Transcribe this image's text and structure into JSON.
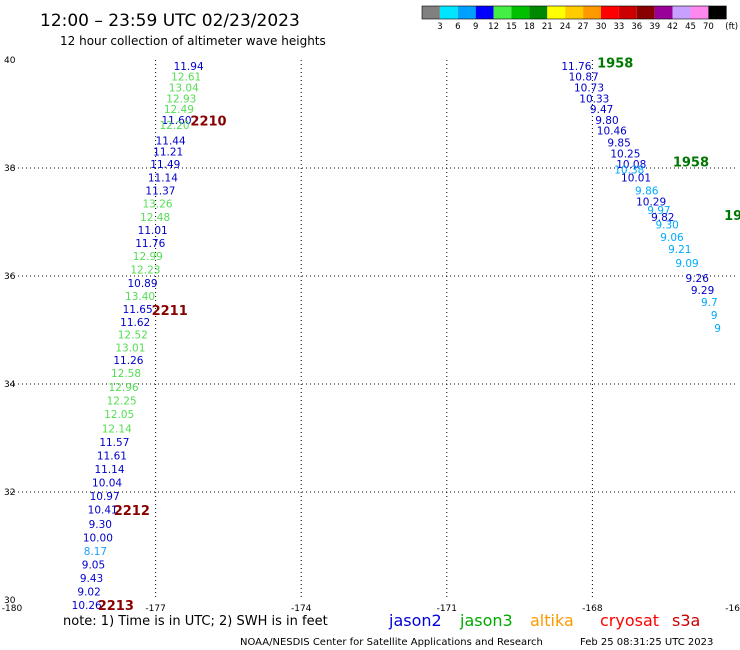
{
  "chart_data": {
    "type": "scatter",
    "title": "12:00 – 23:59 UTC 02/23/2023",
    "subtitle": "12 hour collection of altimeter wave heights",
    "x_ticks": [
      "-180",
      "-177",
      "-174",
      "-171",
      "-168",
      "-16"
    ],
    "y_ticks": [
      "40",
      "38",
      "36",
      "34",
      "32",
      "30"
    ],
    "xlim": [
      -180,
      -165
    ],
    "ylim": [
      30,
      40
    ],
    "grid": "dotted",
    "colorbar": {
      "labels": [
        "3",
        "6",
        "9",
        "12",
        "15",
        "18",
        "21",
        "24",
        "27",
        "30",
        "33",
        "36",
        "39",
        "42",
        "45",
        "70"
      ],
      "unit": "(ft)",
      "colors": [
        "#808080",
        "#00e5ff",
        "#00a0ff",
        "#0000ff",
        "#44ee44",
        "#00c000",
        "#008800",
        "#ffff00",
        "#ffcc00",
        "#ff9900",
        "#ff0000",
        "#cc0000",
        "#880000",
        "#990099",
        "#c8a0ff",
        "#ff88ee",
        "#000000"
      ]
    },
    "track_a": {
      "points": [
        {
          "lat": 39.89,
          "lon": -176.32,
          "v": "11.94",
          "c": "#0000cc"
        },
        {
          "lat": 39.69,
          "lon": -176.37,
          "v": "12.61",
          "c": "#55dd55"
        },
        {
          "lat": 39.49,
          "lon": -176.42,
          "v": "13.04",
          "c": "#55dd55"
        },
        {
          "lat": 39.29,
          "lon": -176.47,
          "v": "12.93",
          "c": "#55dd55"
        },
        {
          "lat": 39.09,
          "lon": -176.52,
          "v": "12.49",
          "c": "#55dd55"
        },
        {
          "lat": 38.89,
          "lon": -176.57,
          "v": "11.60",
          "c": "#0000cc"
        },
        {
          "lat": 38.8,
          "lon": -176.61,
          "v": "12.20",
          "c": "#55dd55"
        },
        {
          "lat": 38.51,
          "lon": -176.69,
          "v": "11.44",
          "c": "#0000cc"
        },
        {
          "lat": 38.31,
          "lon": -176.74,
          "v": "11.21",
          "c": "#0000cc"
        },
        {
          "lat": 38.07,
          "lon": -176.8,
          "v": "11.49",
          "c": "#0000cc"
        },
        {
          "lat": 37.82,
          "lon": -176.85,
          "v": "11.14",
          "c": "#0000cc"
        },
        {
          "lat": 37.58,
          "lon": -176.9,
          "v": "11.37",
          "c": "#0000cc"
        },
        {
          "lat": 37.34,
          "lon": -176.96,
          "v": "13.26",
          "c": "#55dd55"
        },
        {
          "lat": 37.09,
          "lon": -177.01,
          "v": "12.48",
          "c": "#55dd55"
        },
        {
          "lat": 36.85,
          "lon": -177.06,
          "v": "11.01",
          "c": "#0000cc"
        },
        {
          "lat": 36.61,
          "lon": -177.11,
          "v": "11.76",
          "c": "#0000cc"
        },
        {
          "lat": 36.37,
          "lon": -177.16,
          "v": "12.99",
          "c": "#55dd55"
        },
        {
          "lat": 36.12,
          "lon": -177.21,
          "v": "12.23",
          "c": "#55dd55"
        },
        {
          "lat": 35.87,
          "lon": -177.27,
          "v": "10.89",
          "c": "#0000cc"
        },
        {
          "lat": 35.63,
          "lon": -177.32,
          "v": "13.40",
          "c": "#55dd55"
        },
        {
          "lat": 35.39,
          "lon": -177.37,
          "v": "11.65",
          "c": "#0000cc"
        },
        {
          "lat": 35.15,
          "lon": -177.42,
          "v": "11.62",
          "c": "#0000cc"
        },
        {
          "lat": 34.92,
          "lon": -177.47,
          "v": "12.52",
          "c": "#55dd55"
        },
        {
          "lat": 34.68,
          "lon": -177.52,
          "v": "13.01",
          "c": "#55dd55"
        },
        {
          "lat": 34.44,
          "lon": -177.56,
          "v": "11.26",
          "c": "#0000cc"
        },
        {
          "lat": 34.2,
          "lon": -177.61,
          "v": "12.58",
          "c": "#55dd55"
        },
        {
          "lat": 33.94,
          "lon": -177.66,
          "v": "12.96",
          "c": "#55dd55"
        },
        {
          "lat": 33.69,
          "lon": -177.7,
          "v": "12.25",
          "c": "#55dd55"
        },
        {
          "lat": 33.44,
          "lon": -177.75,
          "v": "12.05",
          "c": "#55dd55"
        },
        {
          "lat": 33.18,
          "lon": -177.8,
          "v": "12.14",
          "c": "#55dd55"
        },
        {
          "lat": 32.93,
          "lon": -177.85,
          "v": "11.57",
          "c": "#0000cc"
        },
        {
          "lat": 32.68,
          "lon": -177.9,
          "v": "11.61",
          "c": "#0000cc"
        },
        {
          "lat": 32.43,
          "lon": -177.95,
          "v": "11.14",
          "c": "#0000cc"
        },
        {
          "lat": 32.18,
          "lon": -178.0,
          "v": "10.04",
          "c": "#0000cc"
        },
        {
          "lat": 31.93,
          "lon": -178.05,
          "v": "10.97",
          "c": "#0000cc"
        },
        {
          "lat": 31.68,
          "lon": -178.09,
          "v": "10.41",
          "c": "#0000cc"
        },
        {
          "lat": 31.41,
          "lon": -178.14,
          "v": "9.30",
          "c": "#0000cc"
        },
        {
          "lat": 31.16,
          "lon": -178.19,
          "v": "10.00",
          "c": "#0000cc"
        },
        {
          "lat": 30.91,
          "lon": -178.24,
          "v": "8.17",
          "c": "#1ea0ff"
        },
        {
          "lat": 30.66,
          "lon": -178.28,
          "v": "9.05",
          "c": "#0000cc"
        },
        {
          "lat": 30.41,
          "lon": -178.32,
          "v": "9.43",
          "c": "#0000cc"
        },
        {
          "lat": 30.16,
          "lon": -178.37,
          "v": "9.02",
          "c": "#0000cc"
        },
        {
          "lat": 29.91,
          "lon": -178.42,
          "v": "10.26",
          "c": "#0000cc"
        }
      ],
      "times": [
        {
          "lat": 38.88,
          "lon": -175.91,
          "t": "2210",
          "c": "#880000"
        },
        {
          "lat": 35.37,
          "lon": -176.71,
          "t": "2211",
          "c": "#880000"
        },
        {
          "lat": 31.67,
          "lon": -177.49,
          "t": "2212",
          "c": "#880000"
        },
        {
          "lat": 29.91,
          "lon": -177.82,
          "t": "2213",
          "c": "#880000"
        }
      ]
    },
    "track_b": {
      "points": [
        {
          "lat": 39.89,
          "lon": -168.33,
          "v": "11.76",
          "c": "#0000cc"
        },
        {
          "lat": 39.69,
          "lon": -168.18,
          "v": "10.87",
          "c": "#0000cc"
        },
        {
          "lat": 39.49,
          "lon": -168.07,
          "v": "10.73",
          "c": "#0000cc"
        },
        {
          "lat": 39.29,
          "lon": -167.96,
          "v": "10.33",
          "c": "#0000cc"
        },
        {
          "lat": 39.09,
          "lon": -167.81,
          "v": "9.47",
          "c": "#0000cc"
        },
        {
          "lat": 38.89,
          "lon": -167.7,
          "v": "9.80",
          "c": "#0000cc"
        },
        {
          "lat": 38.69,
          "lon": -167.6,
          "v": "10.46",
          "c": "#0000cc"
        },
        {
          "lat": 38.47,
          "lon": -167.45,
          "v": "9.85",
          "c": "#0000cc"
        },
        {
          "lat": 38.27,
          "lon": -167.32,
          "v": "10.25",
          "c": "#0000cc"
        },
        {
          "lat": 38.07,
          "lon": -167.2,
          "v": "10.08",
          "c": "#0000cc"
        },
        {
          "lat": 37.97,
          "lon": -167.24,
          "v": "10.38",
          "c": "#00aaff"
        },
        {
          "lat": 37.82,
          "lon": -167.1,
          "v": "10.01",
          "c": "#0000cc"
        },
        {
          "lat": 37.58,
          "lon": -166.88,
          "v": "9.86",
          "c": "#00aaff"
        },
        {
          "lat": 37.38,
          "lon": -166.79,
          "v": "10.29",
          "c": "#0000cc"
        },
        {
          "lat": 37.22,
          "lon": -166.63,
          "v": "9.97",
          "c": "#00aaff"
        },
        {
          "lat": 37.09,
          "lon": -166.55,
          "v": "9.82",
          "c": "#0000cc"
        },
        {
          "lat": 36.95,
          "lon": -166.46,
          "v": "9.30",
          "c": "#00aaff"
        },
        {
          "lat": 36.72,
          "lon": -166.36,
          "v": "9.06",
          "c": "#00aaff"
        },
        {
          "lat": 36.5,
          "lon": -166.2,
          "v": "9.21",
          "c": "#00aaff"
        },
        {
          "lat": 36.24,
          "lon": -166.05,
          "v": "9.09",
          "c": "#00aaff"
        },
        {
          "lat": 35.96,
          "lon": -165.84,
          "v": "9.26",
          "c": "#0000cc"
        },
        {
          "lat": 35.74,
          "lon": -165.73,
          "v": "9.29",
          "c": "#0000cc"
        },
        {
          "lat": 35.52,
          "lon": -165.59,
          "v": "9.7",
          "c": "#00aaff"
        },
        {
          "lat": 35.28,
          "lon": -165.49,
          "v": "9",
          "c": "#00aaff"
        },
        {
          "lat": 35.04,
          "lon": -165.42,
          "v": "9",
          "c": "#00aaff"
        }
      ],
      "times": [
        {
          "lat": 39.95,
          "lon": -167.53,
          "t": "1958",
          "c": "#007700"
        },
        {
          "lat": 38.12,
          "lon": -165.97,
          "t": "1958",
          "c": "#007700"
        },
        {
          "lat": 37.13,
          "lon": -165.1,
          "t": "19",
          "c": "#007700"
        }
      ]
    }
  },
  "note": "note:  1) Time is in UTC;  2) SWH is in feet",
  "satellites": [
    {
      "name": "jason2",
      "color": "#0000dd"
    },
    {
      "name": "jason3",
      "color": "#00aa00"
    },
    {
      "name": "altika",
      "color": "#ff9900"
    },
    {
      "name": "cryosat",
      "color": "#ff0000"
    },
    {
      "name": "s3a",
      "color": "#cc0000"
    }
  ],
  "credit": "NOAA/NESDIS Center for Satellite Applications and Research",
  "timestamp": "Feb 25 08:31:25 UTC 2023"
}
